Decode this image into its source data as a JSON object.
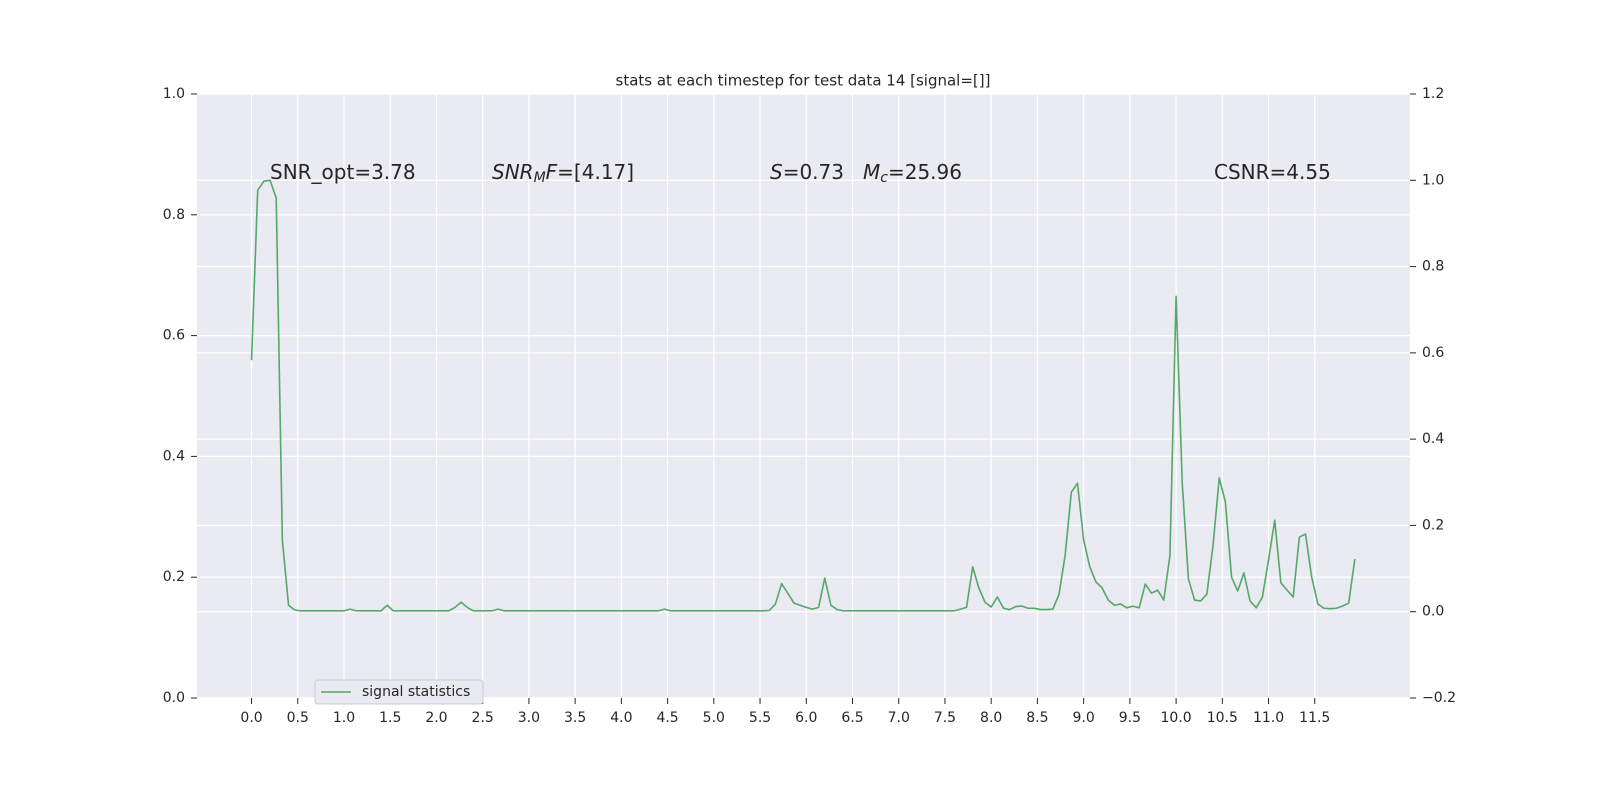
{
  "chart_data": {
    "type": "line",
    "title": "stats at each timestep for test data 14 [signal=[]]",
    "annotations": [
      {
        "parts": [
          {
            "text": "SNR_opt=3.78"
          }
        ]
      },
      {
        "parts": [
          {
            "text": "SNR",
            "italic": true
          },
          {
            "text": "M",
            "italic": true,
            "sub": true
          },
          {
            "text": "F",
            "italic": true
          },
          {
            "text": "=[4.17]"
          }
        ]
      },
      {
        "parts": [
          {
            "text": "S",
            "italic": true
          },
          {
            "text": "=0.73"
          }
        ]
      },
      {
        "parts": [
          {
            "text": "M",
            "italic": true
          },
          {
            "text": "c",
            "italic": true,
            "sub": true
          },
          {
            "text": "=25.96"
          }
        ]
      },
      {
        "parts": [
          {
            "text": "CSNR=4.55"
          }
        ]
      }
    ],
    "x": [
      0,
      0.0667,
      0.1333,
      0.2,
      0.2667,
      0.3333,
      0.4,
      0.4667,
      0.5333,
      0.6,
      0.6667,
      0.7333,
      0.8,
      0.8667,
      0.9333,
      1,
      1.0667,
      1.1333,
      1.2,
      1.2667,
      1.3333,
      1.4,
      1.4667,
      1.5333,
      1.6,
      1.6667,
      1.7333,
      1.8,
      1.8667,
      1.9333,
      2,
      2.0667,
      2.1333,
      2.2,
      2.2667,
      2.3333,
      2.4,
      2.4667,
      2.5333,
      2.6,
      2.6667,
      2.7333,
      2.8,
      2.8667,
      2.9333,
      3,
      3.0667,
      3.1333,
      3.2,
      3.2667,
      3.3333,
      3.4,
      3.4667,
      3.5333,
      3.6,
      3.6667,
      3.7333,
      3.8,
      3.8667,
      3.9333,
      4,
      4.0667,
      4.1333,
      4.2,
      4.2667,
      4.3333,
      4.4,
      4.4667,
      4.5333,
      4.6,
      4.6667,
      4.7333,
      4.8,
      4.8667,
      4.9333,
      5,
      5.0667,
      5.1333,
      5.2,
      5.2667,
      5.3333,
      5.4,
      5.4667,
      5.5333,
      5.6,
      5.6667,
      5.7333,
      5.8,
      5.8667,
      5.9333,
      6,
      6.0667,
      6.1333,
      6.2,
      6.2667,
      6.3333,
      6.4,
      6.4667,
      6.5333,
      6.6,
      6.6667,
      6.7333,
      6.8,
      6.8667,
      6.9333,
      7,
      7.0667,
      7.1333,
      7.2,
      7.2667,
      7.3333,
      7.4,
      7.4667,
      7.5333,
      7.6,
      7.6667,
      7.7333,
      7.8,
      7.8667,
      7.9333,
      8,
      8.0667,
      8.1333,
      8.2,
      8.2667,
      8.3333,
      8.4,
      8.4667,
      8.5333,
      8.6,
      8.6667,
      8.7333,
      8.8,
      8.8667,
      8.9333,
      9,
      9.0667,
      9.1333,
      9.2,
      9.2667,
      9.3333,
      9.4,
      9.4667,
      9.5333,
      9.6,
      9.6667,
      9.7333,
      9.8,
      9.8667,
      9.9333,
      10,
      10.0667,
      10.1333,
      10.2,
      10.2667,
      10.3333,
      10.4,
      10.4667,
      10.5333,
      10.6,
      10.6667,
      10.7333,
      10.8,
      10.8667,
      10.9333,
      11,
      11.0667,
      11.1333,
      11.2,
      11.2667,
      11.3333,
      11.4,
      11.4667,
      11.5333,
      11.6,
      11.6667,
      11.7333,
      11.8,
      11.8667,
      11.9333
    ],
    "series": [
      {
        "name": "signal statistics",
        "color": "#55a868",
        "axis": "y2",
        "values": [
          0.583,
          0.977,
          0.998,
          1.0,
          0.959,
          0.166,
          0.015,
          0.004,
          0.002,
          0.002,
          0.002,
          0.002,
          0.002,
          0.002,
          0.002,
          0.002,
          0.006,
          0.002,
          0.002,
          0.002,
          0.002,
          0.002,
          0.015,
          0.002,
          0.002,
          0.002,
          0.002,
          0.002,
          0.002,
          0.002,
          0.002,
          0.002,
          0.002,
          0.01,
          0.022,
          0.01,
          0.002,
          0.002,
          0.002,
          0.002,
          0.006,
          0.002,
          0.002,
          0.002,
          0.002,
          0.002,
          0.002,
          0.002,
          0.002,
          0.002,
          0.002,
          0.002,
          0.002,
          0.002,
          0.002,
          0.002,
          0.002,
          0.002,
          0.002,
          0.002,
          0.002,
          0.002,
          0.002,
          0.002,
          0.002,
          0.002,
          0.002,
          0.006,
          0.002,
          0.002,
          0.002,
          0.002,
          0.002,
          0.002,
          0.002,
          0.002,
          0.002,
          0.002,
          0.002,
          0.002,
          0.002,
          0.002,
          0.002,
          0.002,
          0.003,
          0.018,
          0.065,
          0.043,
          0.02,
          0.015,
          0.01,
          0.006,
          0.01,
          0.078,
          0.015,
          0.005,
          0.002,
          0.002,
          0.002,
          0.002,
          0.002,
          0.002,
          0.002,
          0.002,
          0.002,
          0.002,
          0.002,
          0.002,
          0.002,
          0.002,
          0.002,
          0.002,
          0.002,
          0.002,
          0.002,
          0.006,
          0.01,
          0.104,
          0.055,
          0.022,
          0.011,
          0.034,
          0.008,
          0.005,
          0.012,
          0.013,
          0.008,
          0.008,
          0.005,
          0.005,
          0.006,
          0.04,
          0.131,
          0.277,
          0.298,
          0.166,
          0.104,
          0.069,
          0.055,
          0.027,
          0.015,
          0.018,
          0.009,
          0.013,
          0.009,
          0.064,
          0.043,
          0.05,
          0.027,
          0.13,
          0.731,
          0.298,
          0.076,
          0.027,
          0.025,
          0.041,
          0.154,
          0.31,
          0.254,
          0.08,
          0.048,
          0.09,
          0.025,
          0.009,
          0.034,
          0.12,
          0.212,
          0.067,
          0.05,
          0.034,
          0.173,
          0.18,
          0.08,
          0.018,
          0.008,
          0.007,
          0.008,
          0.013,
          0.02,
          0.122
        ]
      }
    ],
    "xlim": [
      -0.59,
      12.53
    ],
    "xticks": [
      {
        "value": 0,
        "label": "0.0"
      },
      0.5,
      {
        "value": 1,
        "label": "1.0"
      },
      1.5,
      {
        "value": 2,
        "label": "2.0"
      },
      2.5,
      {
        "value": 3,
        "label": "3.0"
      },
      3.5,
      {
        "value": 4,
        "label": "4.0"
      },
      4.5,
      {
        "value": 5,
        "label": "5.0"
      },
      5.5,
      {
        "value": 6,
        "label": "6.0"
      },
      6.5,
      {
        "value": 7,
        "label": "7.0"
      },
      7.5,
      {
        "value": 8,
        "label": "8.0"
      },
      8.5,
      {
        "value": 9,
        "label": "9.0"
      },
      9.5,
      {
        "value": 10,
        "label": "10.0"
      },
      10.5,
      {
        "value": 11,
        "label": "11.0"
      },
      11.5
    ],
    "ylim": [
      0,
      1
    ],
    "yticks": [
      {
        "value": 0,
        "label": "0.0"
      },
      0.2,
      0.4,
      0.6,
      0.8,
      {
        "value": 1,
        "label": "1.0"
      }
    ],
    "y2lim": [
      -0.2,
      1.2
    ],
    "y2ticks": [
      {
        "value": -0.2,
        "label": "−0.2"
      },
      {
        "value": 0,
        "label": "0.0"
      },
      0.2,
      0.4,
      0.6,
      0.8,
      {
        "value": 1,
        "label": "1.0"
      },
      1.2
    ],
    "grid": true,
    "legend": "lower left"
  }
}
